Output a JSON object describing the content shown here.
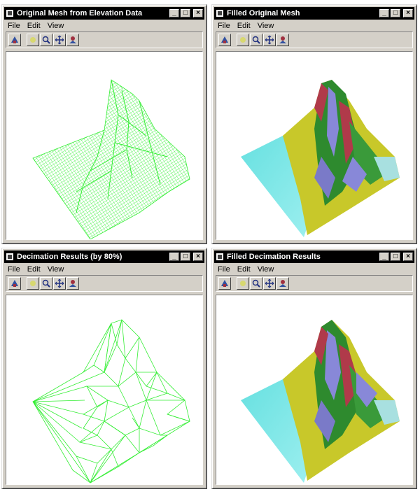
{
  "menu": {
    "file": "File",
    "edit": "Edit",
    "view": "View"
  },
  "controls": {
    "minimize": "_",
    "maximize": "□",
    "close": "×"
  },
  "windows": [
    {
      "title": "Original Mesh from Elevation Data",
      "view": "wireframe-mesh"
    },
    {
      "title": "Filled Original Mesh",
      "view": "filled-surface"
    },
    {
      "title": "Decimation Results (by 80%)",
      "view": "decimated-wireframe"
    },
    {
      "title": "Filled Decimation Results",
      "view": "filled-surface"
    }
  ],
  "toolbar": [
    {
      "icon": "render-icon"
    },
    {
      "icon": "rotate-icon"
    },
    {
      "icon": "zoom-icon"
    },
    {
      "icon": "pan-icon"
    },
    {
      "icon": "reset-view-icon"
    }
  ],
  "colors": {
    "mesh": "#33ee33",
    "water": "#66e0e0",
    "low": "#dcdc2a",
    "mid": "#2e8a2e",
    "high": "#8888d8",
    "peak": "#b03a4a"
  }
}
